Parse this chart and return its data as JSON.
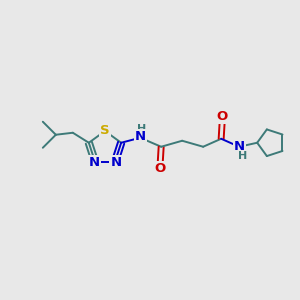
{
  "bg_color": "#e8e8e8",
  "atom_colors": {
    "C": "#3d7a78",
    "N": "#0000cc",
    "O": "#cc0000",
    "S": "#ccaa00",
    "H": "#3d7a78",
    "bond": "#3d7a78"
  },
  "figsize": [
    3.0,
    3.0
  ],
  "dpi": 100
}
